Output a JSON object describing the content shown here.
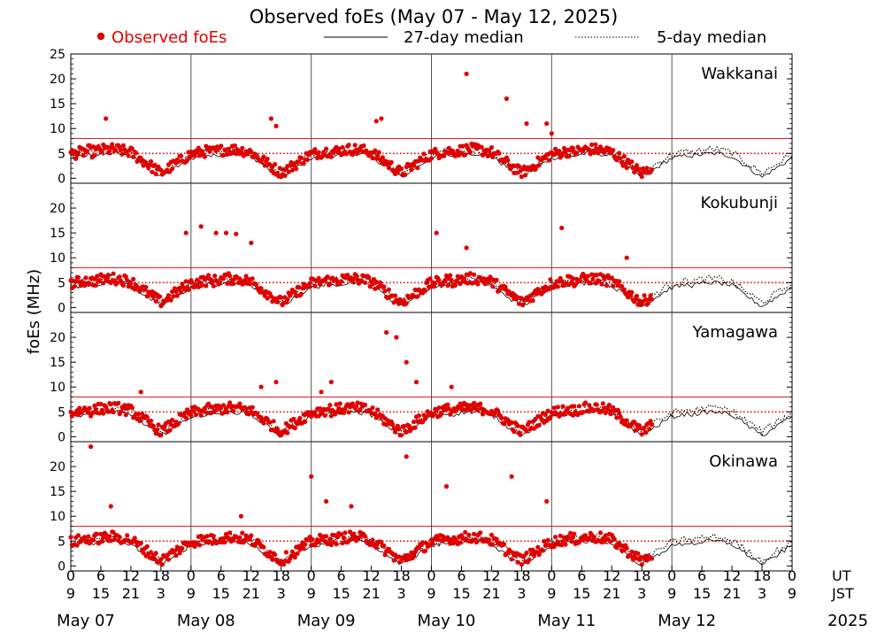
{
  "chart_data": {
    "type": "scatter",
    "title": "Observed foEs (May 07 - May 12, 2025)",
    "ylabel": "foEs (MHz)",
    "legend": {
      "observed": "Observed foEs",
      "median27": "27-day median",
      "median5": "5-day median"
    },
    "colors": {
      "observed": "#e00000",
      "ref_line": "#e00000",
      "median": "#000000"
    },
    "stations": [
      {
        "name": "Wakkanai",
        "y_ticks": [
          "25",
          "20",
          "15",
          "10",
          "5",
          "0"
        ]
      },
      {
        "name": "Kokubunji",
        "y_ticks": [
          "20",
          "15",
          "10",
          "5",
          "0"
        ]
      },
      {
        "name": "Yamagawa",
        "y_ticks": [
          "20",
          "15",
          "10",
          "5",
          "0"
        ]
      },
      {
        "name": "Okinawa",
        "y_ticks": [
          "20",
          "15",
          "10",
          "5",
          "0"
        ]
      }
    ],
    "ylim": [
      -1,
      25
    ],
    "reference_lines": [
      5,
      8
    ],
    "x_hours_total": 144,
    "ut_ticks": [
      "0",
      "6",
      "12",
      "18",
      "0",
      "6",
      "12",
      "18",
      "0",
      "6",
      "12",
      "18",
      "0",
      "6",
      "12",
      "18",
      "0",
      "6",
      "12",
      "18",
      "0",
      "6",
      "12",
      "18",
      "0"
    ],
    "jst_ticks": [
      "9",
      "15",
      "21",
      "3",
      "9",
      "15",
      "21",
      "3",
      "9",
      "15",
      "21",
      "3",
      "9",
      "15",
      "21",
      "3",
      "9",
      "15",
      "21",
      "3",
      "9",
      "15",
      "21",
      "3",
      "9"
    ],
    "ut_label": "UT",
    "jst_label": "JST",
    "days": [
      "May 07",
      "May 08",
      "May 09",
      "May 10",
      "May 11",
      "May 12"
    ],
    "year": "2025",
    "observed_hours_end": 116,
    "spikes": [
      [
        [
          7,
          12
        ],
        [
          40,
          12
        ],
        [
          41,
          10.5
        ],
        [
          61,
          11.5
        ],
        [
          62,
          12
        ],
        [
          79,
          21
        ],
        [
          87,
          16
        ],
        [
          91,
          11
        ],
        [
          95,
          11
        ],
        [
          96,
          9
        ]
      ],
      [
        [
          23,
          15
        ],
        [
          26,
          16.3
        ],
        [
          29,
          15
        ],
        [
          31,
          15
        ],
        [
          33,
          14.8
        ],
        [
          36,
          13
        ],
        [
          73,
          15
        ],
        [
          79,
          12
        ],
        [
          98,
          16
        ],
        [
          111,
          10
        ]
      ],
      [
        [
          14,
          9
        ],
        [
          38,
          10
        ],
        [
          41,
          11
        ],
        [
          50,
          9
        ],
        [
          52,
          11
        ],
        [
          63,
          21
        ],
        [
          65,
          20
        ],
        [
          67,
          15
        ],
        [
          69,
          11
        ],
        [
          76,
          10
        ]
      ],
      [
        [
          4,
          24
        ],
        [
          8,
          12
        ],
        [
          34,
          10
        ],
        [
          48,
          18
        ],
        [
          51,
          13
        ],
        [
          56,
          12
        ],
        [
          67,
          22
        ],
        [
          75,
          16
        ],
        [
          88,
          18
        ],
        [
          95,
          13
        ]
      ]
    ]
  }
}
